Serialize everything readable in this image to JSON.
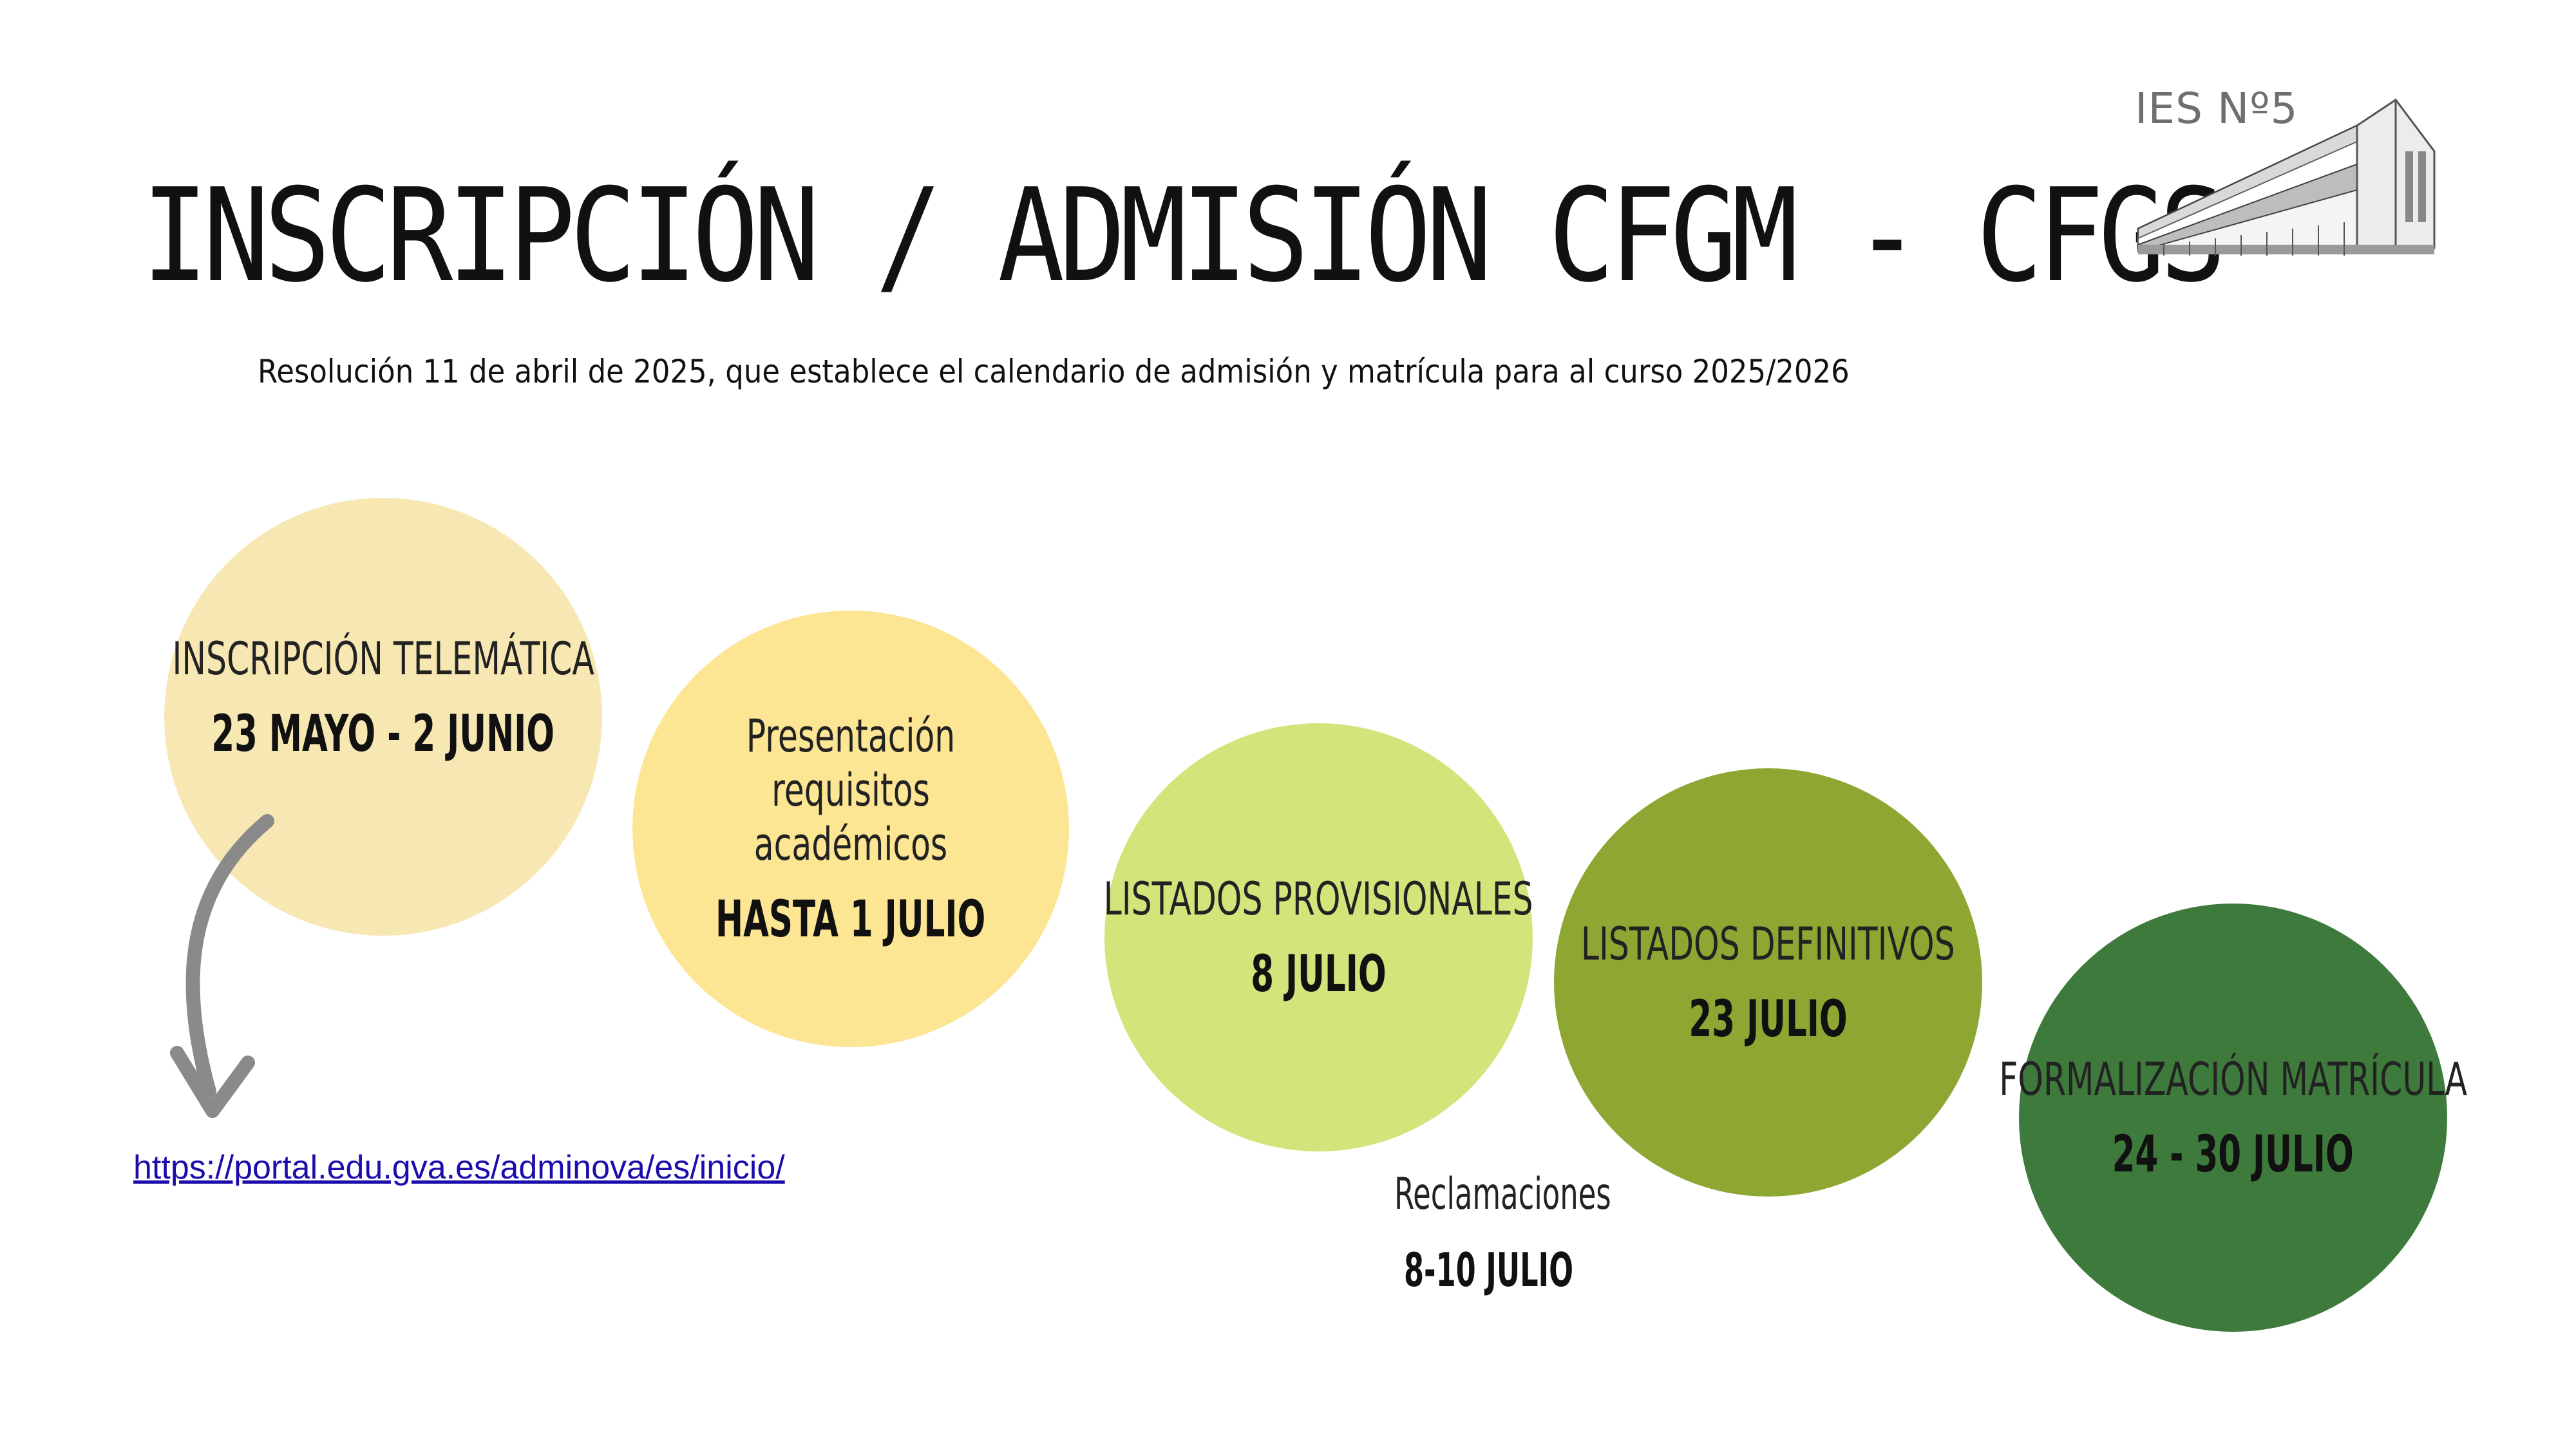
{
  "header": {
    "title": "INSCRIPCIÓN / ADMISIÓN  CFGM - CFGS",
    "subtitle": "Resolución 11 de abril de 2025, que establece el calendario de admisión y matrícula para al curso 2025/2026"
  },
  "logo": {
    "text": "IES Nº5",
    "icon": "school-building-icon"
  },
  "steps": [
    {
      "label": "INSCRIPCIÓN TELEMÁTICA",
      "date": "23 MAYO - 2 JUNIO",
      "color": "#f6e7b3"
    },
    {
      "label": "Presentación requisitos académicos",
      "date": "HASTA 1 JULIO",
      "color": "#fce593"
    },
    {
      "label": "LISTADOS PROVISIONALES",
      "date": "8 JULIO",
      "color": "#d2e57b"
    },
    {
      "label": "LISTADOS DEFINITIVOS",
      "date": "23 JULIO",
      "color": "#8ea632"
    },
    {
      "label": "FORMALIZACIÓN MATRÍCULA",
      "date": "24 - 30 JULIO",
      "color": "#3d7a3b"
    }
  ],
  "claims": {
    "label": "Reclamaciones",
    "date": "8-10 JULIO"
  },
  "link": {
    "url_text": "https://portal.edu.gva.es/adminova/es/inicio/"
  },
  "arrow": {
    "icon": "curved-arrow-down-icon",
    "color": "#8a8a8a"
  }
}
